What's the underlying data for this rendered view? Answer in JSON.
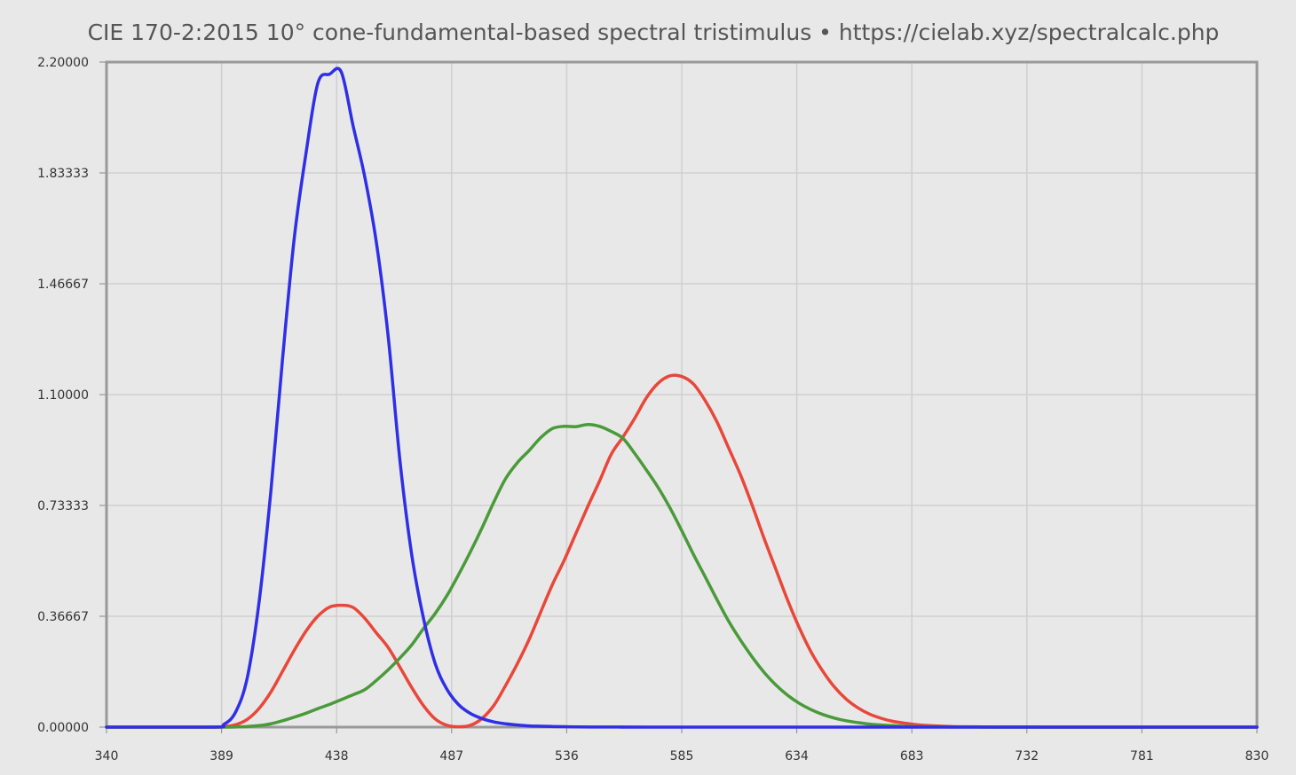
{
  "chart_data": {
    "type": "line",
    "title": "CIE 170-2:2015 10° cone-fundamental-based spectral tristimulus  •  https://cielab.xyz/spectralcalc.php",
    "xlabel": "",
    "ylabel": "",
    "xlim": [
      340,
      830
    ],
    "ylim": [
      0,
      2.2
    ],
    "x_ticks": [
      "340",
      "389",
      "438",
      "487",
      "536",
      "585",
      "634",
      "683",
      "732",
      "781",
      "830"
    ],
    "y_ticks": [
      "0.00000",
      "0.36667",
      "0.73333",
      "1.10000",
      "1.46667",
      "1.83333",
      "2.20000"
    ],
    "grid": true,
    "legend": "none",
    "series": [
      {
        "color": "#e8473a",
        "x": [
          340,
          385,
          390,
          395,
          400,
          405,
          410,
          415,
          420,
          425,
          430,
          435,
          440,
          445,
          450,
          455,
          460,
          465,
          470,
          475,
          480,
          485,
          490,
          495,
          500,
          505,
          510,
          515,
          520,
          525,
          530,
          535,
          540,
          545,
          550,
          555,
          560,
          565,
          570,
          575,
          580,
          585,
          590,
          595,
          600,
          605,
          610,
          615,
          620,
          625,
          630,
          635,
          640,
          645,
          650,
          655,
          660,
          665,
          670,
          675,
          680,
          685,
          690,
          700,
          710,
          720,
          740,
          760,
          830
        ],
        "y": [
          0,
          0,
          0.002,
          0.008,
          0.026,
          0.062,
          0.116,
          0.185,
          0.255,
          0.318,
          0.367,
          0.397,
          0.403,
          0.396,
          0.36,
          0.311,
          0.263,
          0.198,
          0.131,
          0.071,
          0.027,
          0.006,
          0.001,
          0.006,
          0.029,
          0.072,
          0.138,
          0.21,
          0.29,
          0.382,
          0.473,
          0.553,
          0.642,
          0.73,
          0.814,
          0.903,
          0.96,
          1.022,
          1.09,
          1.138,
          1.162,
          1.16,
          1.135,
          1.08,
          1.01,
          0.923,
          0.835,
          0.734,
          0.626,
          0.524,
          0.422,
          0.33,
          0.25,
          0.186,
          0.133,
          0.093,
          0.064,
          0.043,
          0.029,
          0.019,
          0.013,
          0.008,
          0.005,
          0.002,
          0.001,
          0.0005,
          0.0001,
          0,
          0
        ]
      },
      {
        "color": "#4a9a3a",
        "x": [
          340,
          390,
          395,
          400,
          405,
          410,
          415,
          420,
          425,
          430,
          435,
          440,
          445,
          450,
          455,
          460,
          465,
          470,
          475,
          480,
          485,
          490,
          495,
          500,
          505,
          510,
          515,
          520,
          525,
          530,
          535,
          540,
          545,
          550,
          555,
          560,
          565,
          570,
          575,
          580,
          585,
          590,
          595,
          600,
          605,
          610,
          615,
          620,
          625,
          630,
          635,
          640,
          645,
          650,
          655,
          660,
          665,
          670,
          675,
          680,
          685,
          690,
          700,
          710,
          720,
          740,
          830
        ],
        "y": [
          0,
          0,
          0.001,
          0.002,
          0.005,
          0.011,
          0.021,
          0.033,
          0.046,
          0.061,
          0.075,
          0.091,
          0.107,
          0.124,
          0.155,
          0.19,
          0.229,
          0.272,
          0.326,
          0.376,
          0.435,
          0.505,
          0.58,
          0.66,
          0.745,
          0.822,
          0.875,
          0.915,
          0.958,
          0.988,
          0.995,
          0.994,
          1.001,
          0.995,
          0.978,
          0.955,
          0.905,
          0.85,
          0.792,
          0.725,
          0.65,
          0.571,
          0.497,
          0.422,
          0.35,
          0.288,
          0.232,
          0.182,
          0.14,
          0.106,
          0.079,
          0.058,
          0.042,
          0.03,
          0.021,
          0.015,
          0.01,
          0.007,
          0.005,
          0.003,
          0.002,
          0.001,
          0.0005,
          0.0002,
          0.0001,
          0,
          0
        ]
      },
      {
        "color": "#2f2fe6",
        "x": [
          340,
          385,
          390,
          395,
          400,
          405,
          410,
          415,
          420,
          425,
          430,
          435,
          440,
          445,
          450,
          455,
          460,
          465,
          470,
          475,
          480,
          485,
          490,
          495,
          500,
          505,
          510,
          515,
          520,
          525,
          530,
          535,
          540,
          550,
          560,
          570,
          580,
          830
        ],
        "y": [
          0,
          0,
          0.009,
          0.05,
          0.165,
          0.415,
          0.78,
          1.22,
          1.62,
          1.9,
          2.13,
          2.16,
          2.167,
          1.99,
          1.82,
          1.6,
          1.29,
          0.88,
          0.57,
          0.36,
          0.21,
          0.125,
          0.074,
          0.045,
          0.028,
          0.017,
          0.011,
          0.007,
          0.004,
          0.003,
          0.002,
          0.0013,
          0.0008,
          0.0004,
          0.0002,
          0.0001,
          0,
          0
        ]
      }
    ]
  }
}
